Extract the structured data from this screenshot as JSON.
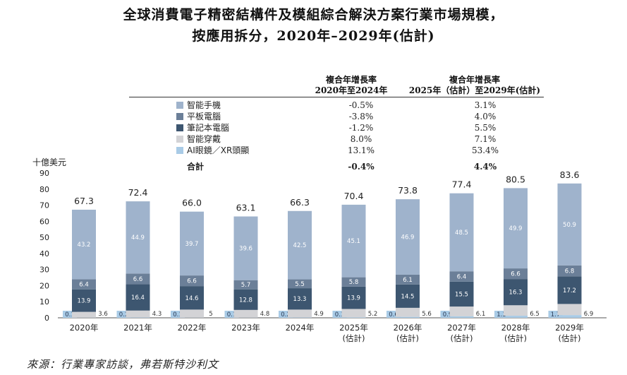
{
  "title_line1": "全球消費電子精密結構件及模組綜合解決方案行業市場規模，",
  "title_line2": "按應用拆分，2020年–2029年(估計)",
  "cagr_header_1": [
    "複合年增長率",
    "2020年至2024年"
  ],
  "cagr_header_2": [
    "複合年增長率",
    "2025年（估計）至2029年(估計)"
  ],
  "legend": [
    {
      "name": "智能手機",
      "cagr1": "-0.5%",
      "cagr2": "3.1%",
      "color": "#9fb3cc"
    },
    {
      "name": "平板電腦",
      "cagr1": "-3.8%",
      "cagr2": "4.0%",
      "color": "#6b7f98"
    },
    {
      "name": "筆記本電腦",
      "cagr1": "-1.2%",
      "cagr2": "5.5%",
      "color": "#3d5670"
    },
    {
      "name": "智能穿戴",
      "cagr1": "8.0%",
      "cagr2": "7.1%",
      "color": "#d3d3d6"
    },
    {
      "name": "AI眼鏡／XR頭顯",
      "cagr1": "13.1%",
      "cagr2": "53.4%",
      "color": "#a9cbe6"
    }
  ],
  "total_row": {
    "name": "合計",
    "cagr1": "-0.4%",
    "cagr2": "4.4%"
  },
  "unit_label": "十億美元",
  "source": "來源：行業專家訪談，弗若斯特沙利文",
  "chart_data": {
    "type": "bar",
    "stacked": true,
    "categories": [
      "2020年",
      "2021年",
      "2022年",
      "2023年",
      "2024年",
      "2025年\n(估計)",
      "2026年\n(估計)",
      "2027年\n(估計)",
      "2028年\n(估計)",
      "2029年\n(估計)"
    ],
    "series": [
      {
        "name": "AI眼鏡／XR頭顯",
        "color": "#a9cbe6",
        "values": [
          0.1,
          0.2,
          0.1,
          0.1,
          0.2,
          0.3,
          0.6,
          0.9,
          1.3,
          1.7
        ]
      },
      {
        "name": "智能穿戴",
        "color": "#d3d3d6",
        "values": [
          3.6,
          4.3,
          5.0,
          4.8,
          4.9,
          5.2,
          5.6,
          6.1,
          6.5,
          6.9
        ]
      },
      {
        "name": "筆記本電腦",
        "color": "#3d5670",
        "values": [
          13.9,
          16.4,
          14.6,
          12.8,
          13.3,
          13.9,
          14.5,
          15.5,
          16.3,
          17.2
        ]
      },
      {
        "name": "平板電腦",
        "color": "#6b7f98",
        "values": [
          6.4,
          6.6,
          6.6,
          5.7,
          5.5,
          5.8,
          6.1,
          6.4,
          6.6,
          6.8
        ]
      },
      {
        "name": "智能手機",
        "color": "#9fb3cc",
        "values": [
          43.2,
          44.9,
          39.7,
          39.6,
          42.5,
          45.1,
          46.9,
          48.5,
          49.9,
          50.9
        ]
      }
    ],
    "totals": [
      "67.3",
      "72.4",
      "66.0",
      "63.1",
      "66.3",
      "70.4",
      "73.8",
      "77.4",
      "80.5",
      "83.6"
    ],
    "ylim": [
      0,
      90
    ],
    "yticks": [
      0,
      10,
      20,
      30,
      40,
      50,
      60,
      70,
      80,
      90
    ],
    "ylabel": "十億美元"
  }
}
